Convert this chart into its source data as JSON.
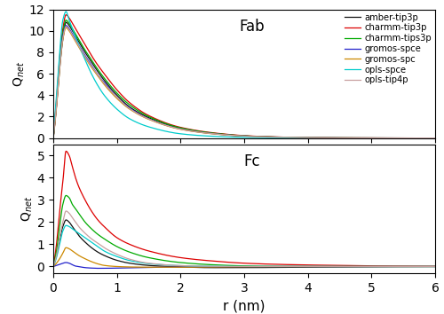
{
  "title_fab": "Fab",
  "title_fc": "Fc",
  "xlabel": "r (nm)",
  "ylabel_fab": "Q$_{net}$",
  "ylabel_fc": "Q$_{net}$",
  "xlim": [
    0,
    6
  ],
  "fab_ylim": [
    0,
    12
  ],
  "fc_ylim": [
    -0.3,
    5.5
  ],
  "fab_yticks": [
    0,
    2,
    4,
    6,
    8,
    10,
    12
  ],
  "fc_yticks": [
    0,
    1,
    2,
    3,
    4,
    5
  ],
  "xticks": [
    0,
    1,
    2,
    3,
    4,
    5,
    6
  ],
  "legend_labels": [
    "amber-tip3p",
    "charmm-tip3p",
    "charmm-tips3p",
    "gromos-spce",
    "gromos-spc",
    "opls-spce",
    "opls-tip4p"
  ],
  "colors": [
    "#111111",
    "#dd0000",
    "#00aa00",
    "#2222cc",
    "#cc8800",
    "#00cccc",
    "#c8a0a0"
  ],
  "linewidth": 0.9,
  "background_color": "#ffffff",
  "fab_curves": [
    [
      0.0,
      0.05,
      0.1,
      0.15,
      0.2,
      0.25,
      0.3,
      0.4,
      0.5,
      0.6,
      0.7,
      0.8,
      1.0,
      1.2,
      1.5,
      2.0,
      2.5,
      3.0,
      3.5,
      4.0,
      4.5,
      5.0,
      5.5,
      6.0
    ],
    [
      0.0,
      3.0,
      6.5,
      9.2,
      10.8,
      10.5,
      10.0,
      9.0,
      8.0,
      7.1,
      6.2,
      5.4,
      4.0,
      2.9,
      1.9,
      0.9,
      0.45,
      0.2,
      0.1,
      0.05,
      0.02,
      0.01,
      0.005,
      0.001
    ],
    [
      0.0,
      3.5,
      7.5,
      10.2,
      11.5,
      11.2,
      10.7,
      9.7,
      8.7,
      7.7,
      6.8,
      6.0,
      4.5,
      3.3,
      2.1,
      1.0,
      0.5,
      0.23,
      0.1,
      0.05,
      0.02,
      0.01,
      0.005,
      0.001
    ],
    [
      0.0,
      3.2,
      7.0,
      9.8,
      11.0,
      10.7,
      10.2,
      9.2,
      8.2,
      7.3,
      6.4,
      5.6,
      4.2,
      3.1,
      2.0,
      0.95,
      0.47,
      0.21,
      0.09,
      0.04,
      0.02,
      0.01,
      0.005,
      0.001
    ],
    [
      0.0,
      3.0,
      6.8,
      9.5,
      10.5,
      10.2,
      9.7,
      8.7,
      7.7,
      6.8,
      5.9,
      5.2,
      3.8,
      2.8,
      1.8,
      0.85,
      0.42,
      0.19,
      0.08,
      0.04,
      0.015,
      0.008,
      0.004,
      0.001
    ],
    [
      0.0,
      2.8,
      6.5,
      9.2,
      10.3,
      10.0,
      9.5,
      8.5,
      7.5,
      6.6,
      5.8,
      5.0,
      3.7,
      2.7,
      1.75,
      0.82,
      0.4,
      0.18,
      0.08,
      0.035,
      0.015,
      0.007,
      0.003,
      0.001
    ],
    [
      0.0,
      4.0,
      8.0,
      11.0,
      11.8,
      11.0,
      10.2,
      8.7,
      7.3,
      6.0,
      4.9,
      4.0,
      2.7,
      1.8,
      1.05,
      0.4,
      0.17,
      0.07,
      0.03,
      0.012,
      0.005,
      0.002,
      0.001,
      0.0
    ],
    [
      0.0,
      3.0,
      6.6,
      9.3,
      10.4,
      10.1,
      9.6,
      8.6,
      7.6,
      6.7,
      5.9,
      5.1,
      3.8,
      2.75,
      1.78,
      0.84,
      0.41,
      0.185,
      0.08,
      0.036,
      0.015,
      0.007,
      0.003,
      0.001
    ]
  ],
  "fc_curves": [
    [
      0.0,
      0.05,
      0.1,
      0.15,
      0.2,
      0.25,
      0.3,
      0.35,
      0.4,
      0.5,
      0.6,
      0.7,
      0.8,
      1.0,
      1.2,
      1.5,
      2.0,
      2.5,
      3.0,
      3.5,
      4.0,
      4.5,
      5.0,
      5.5,
      6.0
    ],
    [
      0.0,
      0.5,
      1.2,
      1.8,
      2.1,
      2.0,
      1.8,
      1.6,
      1.4,
      1.1,
      0.85,
      0.65,
      0.5,
      0.28,
      0.15,
      0.05,
      -0.02,
      -0.05,
      -0.05,
      -0.04,
      -0.03,
      -0.02,
      -0.01,
      -0.005,
      0.0
    ],
    [
      0.0,
      1.0,
      2.5,
      3.8,
      5.2,
      5.0,
      4.5,
      4.0,
      3.6,
      3.0,
      2.5,
      2.1,
      1.8,
      1.3,
      1.0,
      0.7,
      0.4,
      0.25,
      0.15,
      0.1,
      0.07,
      0.05,
      0.03,
      0.02,
      0.01
    ],
    [
      0.0,
      0.7,
      1.8,
      2.8,
      3.2,
      3.1,
      2.8,
      2.6,
      2.4,
      2.0,
      1.7,
      1.45,
      1.25,
      0.9,
      0.65,
      0.4,
      0.18,
      0.08,
      0.03,
      0.01,
      0.005,
      0.002,
      0.001,
      0.0,
      0.0
    ],
    [
      0.0,
      0.05,
      0.1,
      0.15,
      0.18,
      0.15,
      0.08,
      0.02,
      0.0,
      -0.05,
      -0.07,
      -0.08,
      -0.08,
      -0.07,
      -0.06,
      -0.04,
      -0.02,
      -0.01,
      -0.005,
      -0.002,
      0.0,
      0.0,
      0.0,
      0.0,
      0.0
    ],
    [
      0.0,
      0.15,
      0.35,
      0.6,
      0.85,
      0.8,
      0.7,
      0.6,
      0.5,
      0.35,
      0.22,
      0.12,
      0.05,
      0.0,
      -0.02,
      -0.03,
      -0.03,
      -0.02,
      -0.01,
      -0.005,
      0.0,
      0.0,
      0.0,
      0.0,
      0.0
    ],
    [
      0.0,
      0.4,
      1.0,
      1.6,
      1.85,
      1.8,
      1.7,
      1.6,
      1.5,
      1.3,
      1.1,
      0.9,
      0.7,
      0.45,
      0.27,
      0.13,
      0.04,
      0.01,
      0.002,
      0.0,
      0.0,
      0.0,
      0.0,
      0.0,
      0.0
    ],
    [
      0.0,
      0.5,
      1.3,
      2.0,
      2.5,
      2.4,
      2.2,
      2.0,
      1.8,
      1.5,
      1.25,
      1.05,
      0.85,
      0.55,
      0.33,
      0.15,
      0.04,
      0.01,
      0.003,
      0.0,
      0.0,
      0.0,
      0.0,
      0.0,
      0.0
    ]
  ]
}
